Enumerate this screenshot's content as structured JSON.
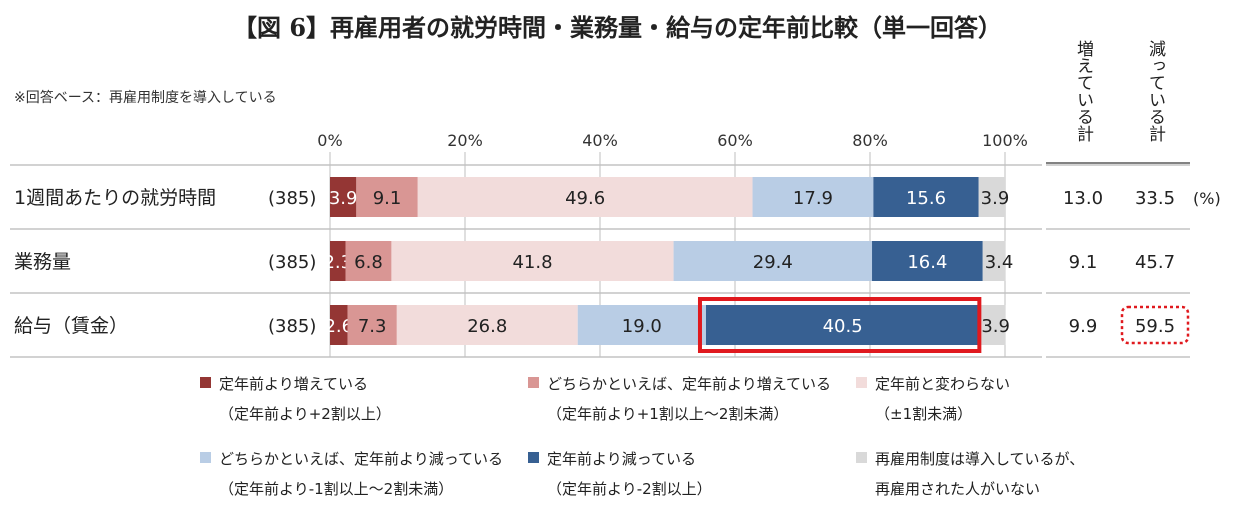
{
  "title": "【図 6】再雇用者の就労時間・業務量・給与の定年前比較（単一回答）",
  "base_note": "※回答ベース：再雇用制度を導入している",
  "sum_headers": [
    "増えている計",
    "減っている計"
  ],
  "unit_label": "(%)",
  "colors": {
    "inc_strong": "#943634",
    "inc_some": "#d99694",
    "same": "#f2dcdb",
    "dec_some": "#b9cde5",
    "dec_strong": "#376092",
    "none": "#d9d9d9",
    "highlight": "#e0191e"
  },
  "chart_data": {
    "type": "bar",
    "orientation": "horizontal-stacked-100",
    "xlim": [
      0,
      100
    ],
    "x_ticks": [
      "0%",
      "20%",
      "40%",
      "60%",
      "80%",
      "100%"
    ],
    "categories": [
      "1週間あたりの就労時間",
      "業務量",
      "給与（賃金）"
    ],
    "n_labels": [
      "(385)",
      "(385)",
      "(385)"
    ],
    "series": [
      {
        "name": "定年前より増えている",
        "sub": "（定年前より+2割以上）",
        "color_key": "inc_strong",
        "values": [
          3.9,
          2.3,
          2.6
        ]
      },
      {
        "name": "どちらかといえば、定年前より増えている",
        "sub": "（定年前より+1割以上～2割未満）",
        "color_key": "inc_some",
        "values": [
          9.1,
          6.8,
          7.3
        ]
      },
      {
        "name": "定年前と変わらない",
        "sub": "（±1割未満）",
        "color_key": "same",
        "values": [
          49.6,
          41.8,
          26.8
        ]
      },
      {
        "name": "どちらかといえば、定年前より減っている",
        "sub": "（定年前より-1割以上～2割未満）",
        "color_key": "dec_some",
        "values": [
          17.9,
          29.4,
          19.0
        ]
      },
      {
        "name": "定年前より減っている",
        "sub": "（定年前より-2割以上）",
        "color_key": "dec_strong",
        "values": [
          15.6,
          16.4,
          40.5
        ]
      },
      {
        "name": "再雇用制度は導入しているが、",
        "sub": "再雇用された人がいない",
        "color_key": "none",
        "values": [
          3.9,
          3.4,
          3.9
        ]
      }
    ],
    "increase_totals": [
      "13.0",
      "9.1",
      "9.9"
    ],
    "decrease_totals": [
      "33.5",
      "45.7",
      "59.5"
    ],
    "highlight": {
      "row": 2,
      "series": 4
    }
  }
}
